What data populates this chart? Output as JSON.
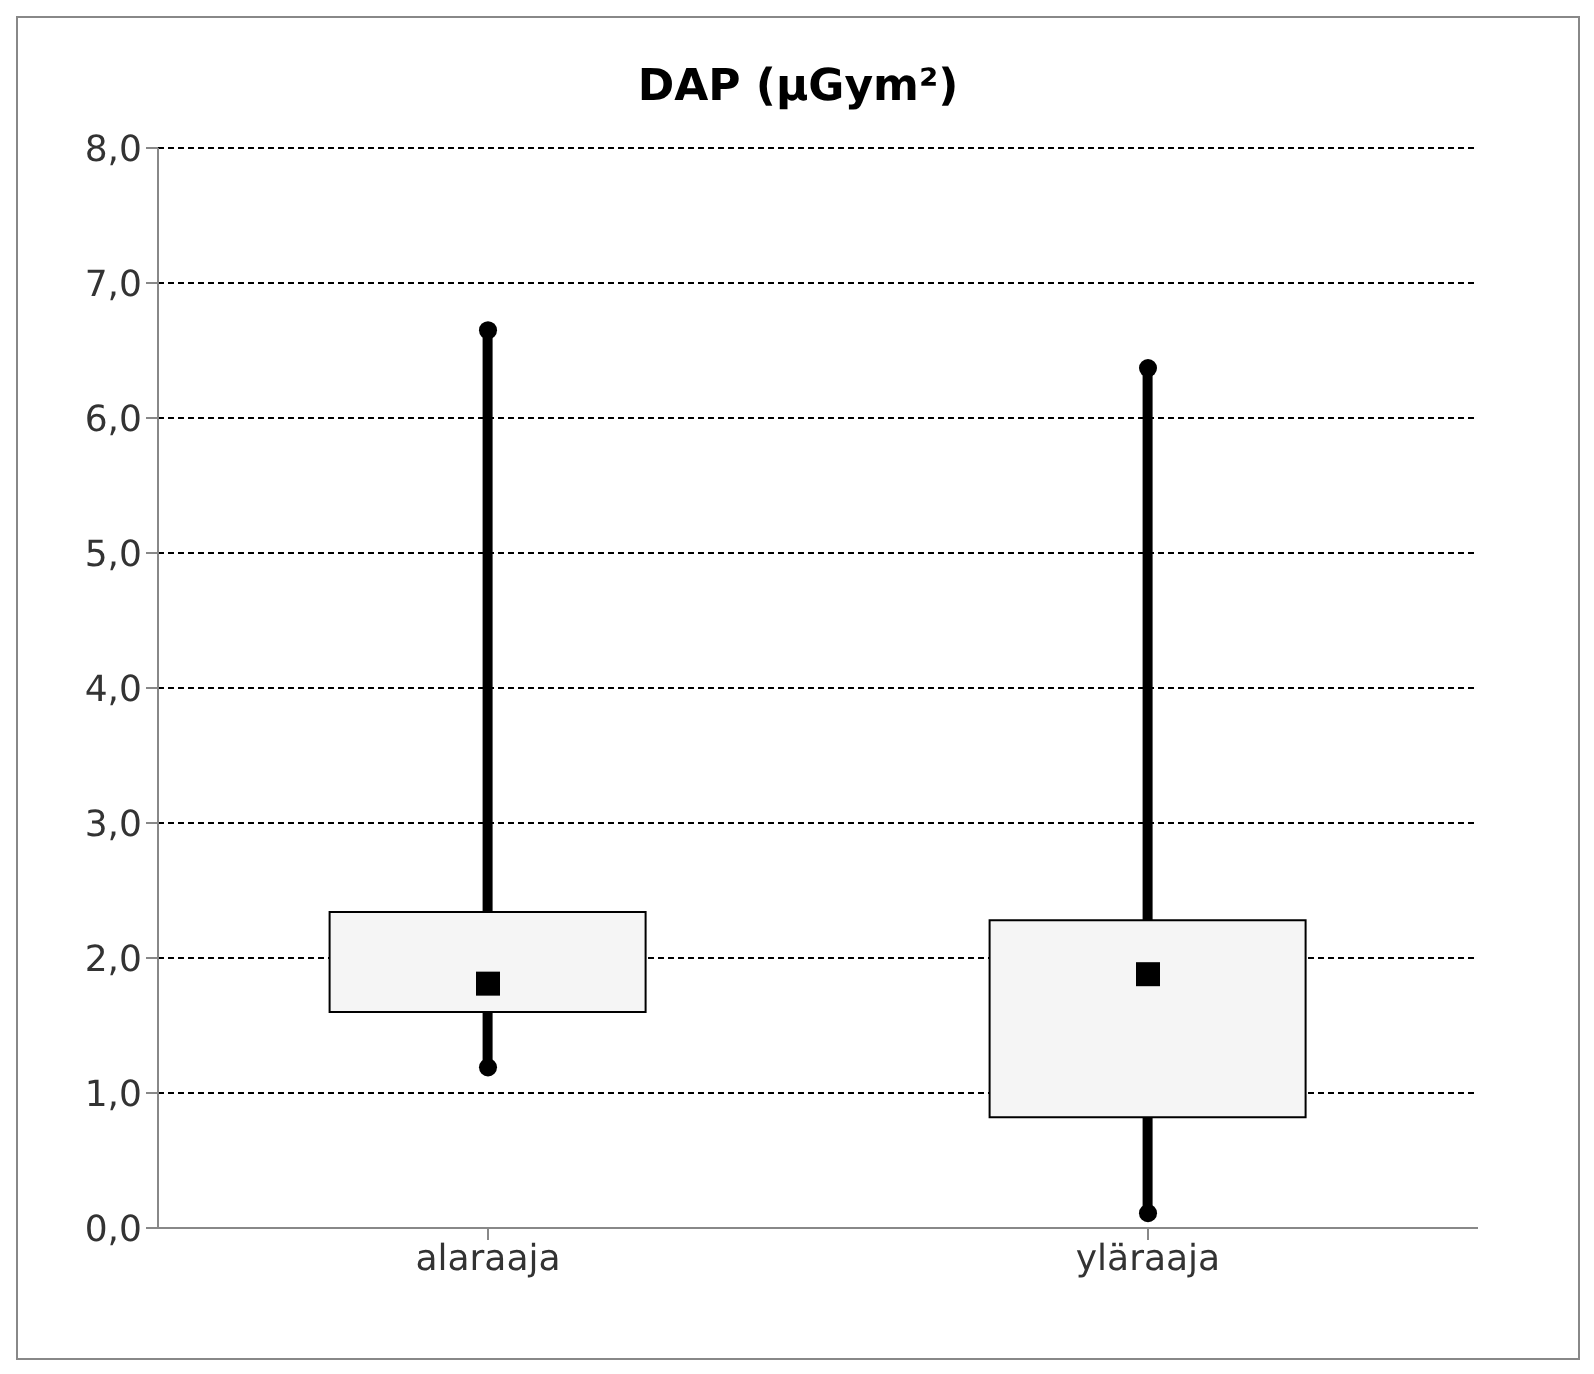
{
  "chart_data": {
    "type": "box",
    "title": "DAP (µGym²)",
    "categories": [
      "alaraaja",
      "yläraaja"
    ],
    "boxes": [
      {
        "low": 1.19,
        "q1": 1.6,
        "median": 1.81,
        "q3": 2.34,
        "high": 6.65
      },
      {
        "low": 0.11,
        "q1": 0.82,
        "median": 1.88,
        "q3": 2.28,
        "high": 6.37
      }
    ],
    "ylim": [
      0,
      8
    ],
    "yticks": [
      {
        "value": 0,
        "label": "0,0"
      },
      {
        "value": 1,
        "label": "1,0"
      },
      {
        "value": 2,
        "label": "2,0"
      },
      {
        "value": 3,
        "label": "3,0"
      },
      {
        "value": 4,
        "label": "4,0"
      },
      {
        "value": 5,
        "label": "5,0"
      },
      {
        "value": 6,
        "label": "6,0"
      },
      {
        "value": 7,
        "label": "7,0"
      },
      {
        "value": 8,
        "label": "8,0"
      }
    ],
    "series": [
      {
        "type": "scatter",
        "color": "#000000",
        "marker": "circle",
        "x": [
          "alaraaja",
          "alaraaja",
          "yläraaja",
          "yläraaja"
        ],
        "values": [
          1.19,
          6.65,
          0.11,
          6.37
        ]
      }
    ],
    "grid": "y",
    "color": "#f5f5f5"
  }
}
